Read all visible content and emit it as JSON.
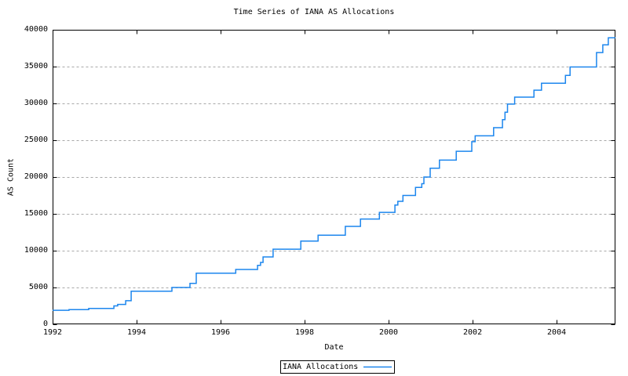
{
  "title": "Time Series of IANA AS Allocations",
  "axes": {
    "xlabel": "Date",
    "ylabel": "AS Count"
  },
  "legend": {
    "label": "IANA Allocations"
  },
  "colors": {
    "line": "#1c86ee",
    "grid": "#a8a8a8",
    "axis": "#000000",
    "background": "#ffffff",
    "text": "#000000"
  },
  "chart_data": {
    "type": "line",
    "style": "step-after",
    "title": "Time Series of IANA AS Allocations",
    "xlabel": "Date",
    "ylabel": "AS Count",
    "xlim": [
      1992,
      2005.4
    ],
    "ylim": [
      0,
      40000
    ],
    "xticks": [
      1992,
      1994,
      1996,
      1998,
      2000,
      2002,
      2004
    ],
    "yticks": [
      0,
      5000,
      10000,
      15000,
      20000,
      25000,
      30000,
      35000,
      40000
    ],
    "grid": "horizontal dotted gridlines at each y tick",
    "legend_position": "below plot, centered, boxed",
    "series": [
      {
        "name": "IANA Allocations",
        "color": "#1c86ee",
        "points": [
          [
            1992.0,
            1900
          ],
          [
            1992.39,
            2000
          ],
          [
            1992.86,
            2150
          ],
          [
            1993.46,
            2500
          ],
          [
            1993.55,
            2700
          ],
          [
            1993.74,
            3200
          ],
          [
            1993.87,
            4500
          ],
          [
            1994.84,
            5000
          ],
          [
            1995.27,
            5550
          ],
          [
            1995.42,
            6950
          ],
          [
            1996.36,
            7450
          ],
          [
            1996.88,
            8000
          ],
          [
            1996.95,
            8400
          ],
          [
            1997.01,
            9150
          ],
          [
            1997.25,
            10200
          ],
          [
            1997.91,
            11300
          ],
          [
            1998.32,
            12100
          ],
          [
            1998.97,
            13300
          ],
          [
            1999.33,
            14300
          ],
          [
            1999.78,
            15200
          ],
          [
            2000.15,
            16200
          ],
          [
            2000.22,
            16700
          ],
          [
            2000.34,
            17500
          ],
          [
            2000.64,
            18600
          ],
          [
            2000.79,
            19100
          ],
          [
            2000.84,
            20000
          ],
          [
            2000.99,
            21200
          ],
          [
            2001.21,
            22300
          ],
          [
            2001.61,
            23500
          ],
          [
            2001.98,
            24800
          ],
          [
            2002.06,
            25600
          ],
          [
            2002.5,
            26700
          ],
          [
            2002.71,
            27800
          ],
          [
            2002.77,
            28800
          ],
          [
            2002.83,
            29900
          ],
          [
            2003.0,
            30850
          ],
          [
            2003.46,
            31800
          ],
          [
            2003.64,
            32750
          ],
          [
            2004.21,
            33800
          ],
          [
            2004.32,
            34950
          ],
          [
            2004.95,
            36900
          ],
          [
            2005.1,
            37950
          ],
          [
            2005.23,
            38900
          ],
          [
            2005.4,
            38900
          ]
        ]
      }
    ]
  }
}
